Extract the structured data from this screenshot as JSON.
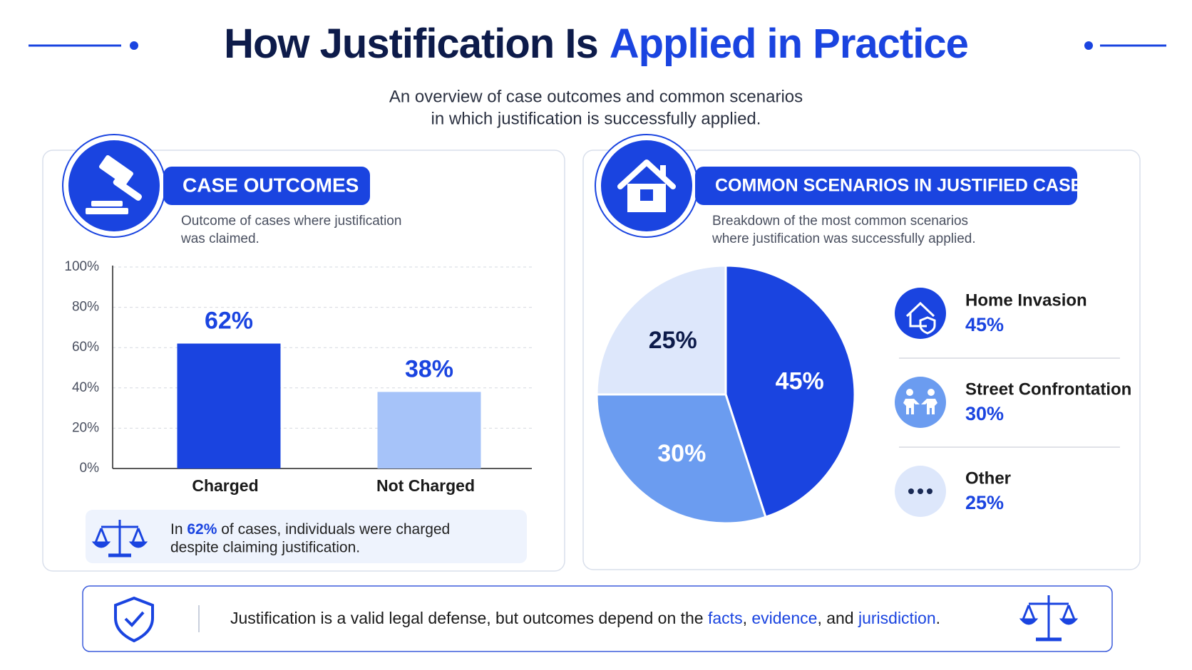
{
  "header": {
    "title": [
      "How Justification Is",
      "Applied in Practice"
    ],
    "subtitle": [
      "An overview of case outcomes and common scenarios",
      "in which justification is successfully applied."
    ]
  },
  "chart_data": [
    {
      "type": "bar",
      "title": "CASE OUTCOMES",
      "subtitle": [
        "Outcome of cases where justification",
        "was claimed."
      ],
      "categories": [
        "Charged",
        "Not Charged"
      ],
      "values": [
        62,
        38
      ],
      "value_labels": [
        "62%",
        "38%"
      ],
      "colors": [
        "#1a44e0",
        "#a6c3f9"
      ],
      "ylim": [
        0,
        100
      ],
      "yticks": [
        {
          "value": 0,
          "label": "0%"
        },
        {
          "value": 20,
          "label": "20%"
        },
        {
          "value": 40,
          "label": "40%"
        },
        {
          "value": 60,
          "label": "60%"
        },
        {
          "value": 80,
          "label": "80%"
        },
        {
          "value": 100,
          "label": "100%"
        }
      ],
      "grid": true,
      "note": {
        "before": "In ",
        "highlight": "62%",
        "after": [
          " of cases, individuals were charged",
          "despite claiming justification."
        ]
      }
    },
    {
      "type": "pie",
      "title": "COMMON SCENARIOS IN JUSTIFIED CASES",
      "subtitle": [
        "Breakdown of the most common scenarios",
        "where justification was successfully applied."
      ],
      "categories": [
        "Home Invasion",
        "Street Confrontation",
        "Other"
      ],
      "values": [
        45,
        30,
        25
      ],
      "value_labels": [
        "45%",
        "30%",
        "25%"
      ],
      "colors": [
        "#1a44e0",
        "#6b9cf0",
        "#dde7fb"
      ],
      "legend": "right"
    }
  ],
  "footer": [
    {
      "text": "Justification is a valid legal defense, but outcomes depend on the ",
      "highlight": false
    },
    {
      "text": "facts",
      "highlight": true
    },
    {
      "text": ", ",
      "highlight": false
    },
    {
      "text": "evidence",
      "highlight": true
    },
    {
      "text": ", and ",
      "highlight": false
    },
    {
      "text": "jurisdiction",
      "highlight": true
    },
    {
      "text": ".",
      "highlight": false
    }
  ]
}
